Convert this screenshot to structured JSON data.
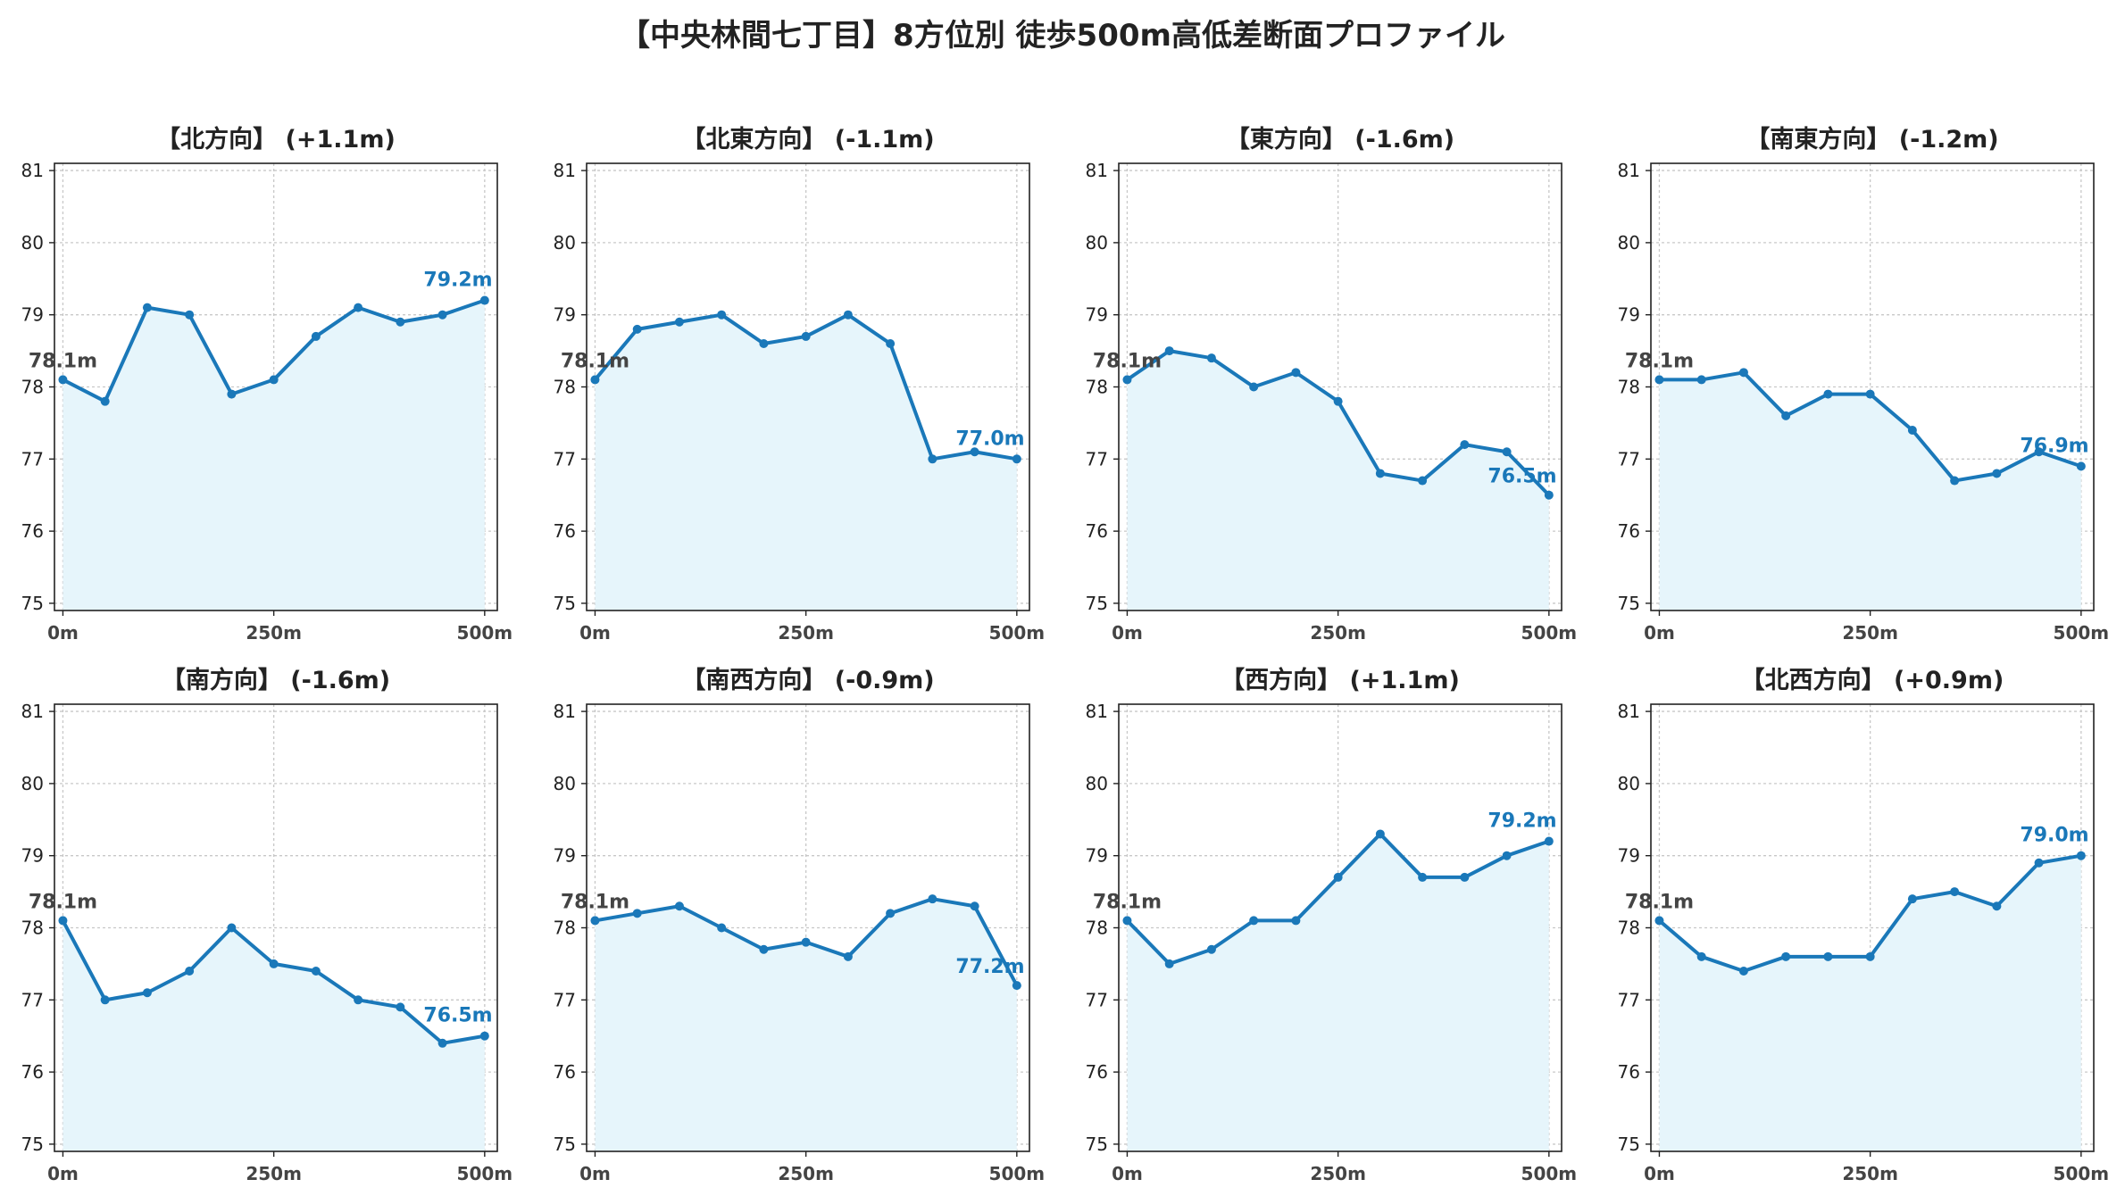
{
  "title": "【中央林間七丁目】8方位別 徒歩500m高低差断面プロファイル",
  "colors": {
    "line": "#1a78b9",
    "fill": "#e6f5fb",
    "grid": "#c8c8c8",
    "axis": "#222222",
    "start_label": "#444444"
  },
  "chart_data": [
    {
      "type": "area",
      "title": "【北方向】 (+1.1m)",
      "x": [
        0,
        50,
        100,
        150,
        200,
        250,
        300,
        350,
        400,
        450,
        500
      ],
      "y": [
        78.1,
        77.8,
        79.1,
        79.0,
        77.9,
        78.1,
        78.7,
        79.1,
        78.9,
        79.0,
        79.2
      ],
      "ylim": [
        74.9,
        81.1
      ],
      "yticks": [
        75,
        76,
        77,
        78,
        79,
        80,
        81
      ],
      "xticks": [
        0,
        250,
        500
      ],
      "xtick_labels": [
        "0m",
        "250m",
        "500m"
      ],
      "start_label": "78.1m",
      "end_label": "79.2m",
      "grid": true
    },
    {
      "type": "area",
      "title": "【北東方向】 (-1.1m)",
      "x": [
        0,
        50,
        100,
        150,
        200,
        250,
        300,
        350,
        400,
        450,
        500
      ],
      "y": [
        78.1,
        78.8,
        78.9,
        79.0,
        78.6,
        78.7,
        79.0,
        78.6,
        77.0,
        77.1,
        77.0
      ],
      "ylim": [
        74.9,
        81.1
      ],
      "yticks": [
        75,
        76,
        77,
        78,
        79,
        80,
        81
      ],
      "xticks": [
        0,
        250,
        500
      ],
      "xtick_labels": [
        "0m",
        "250m",
        "500m"
      ],
      "start_label": "78.1m",
      "end_label": "77.0m",
      "grid": true
    },
    {
      "type": "area",
      "title": "【東方向】 (-1.6m)",
      "x": [
        0,
        50,
        100,
        150,
        200,
        250,
        300,
        350,
        400,
        450,
        500
      ],
      "y": [
        78.1,
        78.5,
        78.4,
        78.0,
        78.2,
        77.8,
        76.8,
        76.7,
        77.2,
        77.1,
        76.5
      ],
      "ylim": [
        74.9,
        81.1
      ],
      "yticks": [
        75,
        76,
        77,
        78,
        79,
        80,
        81
      ],
      "xticks": [
        0,
        250,
        500
      ],
      "xtick_labels": [
        "0m",
        "250m",
        "500m"
      ],
      "start_label": "78.1m",
      "end_label": "76.5m",
      "grid": true
    },
    {
      "type": "area",
      "title": "【南東方向】 (-1.2m)",
      "x": [
        0,
        50,
        100,
        150,
        200,
        250,
        300,
        350,
        400,
        450,
        500
      ],
      "y": [
        78.1,
        78.1,
        78.2,
        77.6,
        77.9,
        77.9,
        77.4,
        76.7,
        76.8,
        77.1,
        76.9
      ],
      "ylim": [
        74.9,
        81.1
      ],
      "yticks": [
        75,
        76,
        77,
        78,
        79,
        80,
        81
      ],
      "xticks": [
        0,
        250,
        500
      ],
      "xtick_labels": [
        "0m",
        "250m",
        "500m"
      ],
      "start_label": "78.1m",
      "end_label": "76.9m",
      "grid": true
    },
    {
      "type": "area",
      "title": "【南方向】 (-1.6m)",
      "x": [
        0,
        50,
        100,
        150,
        200,
        250,
        300,
        350,
        400,
        450,
        500
      ],
      "y": [
        78.1,
        77.0,
        77.1,
        77.4,
        78.0,
        77.5,
        77.4,
        77.0,
        76.9,
        76.4,
        76.5
      ],
      "ylim": [
        74.9,
        81.1
      ],
      "yticks": [
        75,
        76,
        77,
        78,
        79,
        80,
        81
      ],
      "xticks": [
        0,
        250,
        500
      ],
      "xtick_labels": [
        "0m",
        "250m",
        "500m"
      ],
      "start_label": "78.1m",
      "end_label": "76.5m",
      "grid": true
    },
    {
      "type": "area",
      "title": "【南西方向】 (-0.9m)",
      "x": [
        0,
        50,
        100,
        150,
        200,
        250,
        300,
        350,
        400,
        450,
        500
      ],
      "y": [
        78.1,
        78.2,
        78.3,
        78.0,
        77.7,
        77.8,
        77.6,
        78.2,
        78.4,
        78.3,
        77.2
      ],
      "ylim": [
        74.9,
        81.1
      ],
      "yticks": [
        75,
        76,
        77,
        78,
        79,
        80,
        81
      ],
      "xticks": [
        0,
        250,
        500
      ],
      "xtick_labels": [
        "0m",
        "250m",
        "500m"
      ],
      "start_label": "78.1m",
      "end_label": "77.2m",
      "grid": true
    },
    {
      "type": "area",
      "title": "【西方向】 (+1.1m)",
      "x": [
        0,
        50,
        100,
        150,
        200,
        250,
        300,
        350,
        400,
        450,
        500
      ],
      "y": [
        78.1,
        77.5,
        77.7,
        78.1,
        78.1,
        78.7,
        79.3,
        78.7,
        78.7,
        79.0,
        79.2
      ],
      "ylim": [
        74.9,
        81.1
      ],
      "yticks": [
        75,
        76,
        77,
        78,
        79,
        80,
        81
      ],
      "xticks": [
        0,
        250,
        500
      ],
      "xtick_labels": [
        "0m",
        "250m",
        "500m"
      ],
      "start_label": "78.1m",
      "end_label": "79.2m",
      "grid": true
    },
    {
      "type": "area",
      "title": "【北西方向】 (+0.9m)",
      "x": [
        0,
        50,
        100,
        150,
        200,
        250,
        300,
        350,
        400,
        450,
        500
      ],
      "y": [
        78.1,
        77.6,
        77.4,
        77.6,
        77.6,
        77.6,
        78.4,
        78.5,
        78.3,
        78.9,
        79.0
      ],
      "ylim": [
        74.9,
        81.1
      ],
      "yticks": [
        75,
        76,
        77,
        78,
        79,
        80,
        81
      ],
      "xticks": [
        0,
        250,
        500
      ],
      "xtick_labels": [
        "0m",
        "250m",
        "500m"
      ],
      "start_label": "78.1m",
      "end_label": "79.0m",
      "grid": true
    }
  ]
}
